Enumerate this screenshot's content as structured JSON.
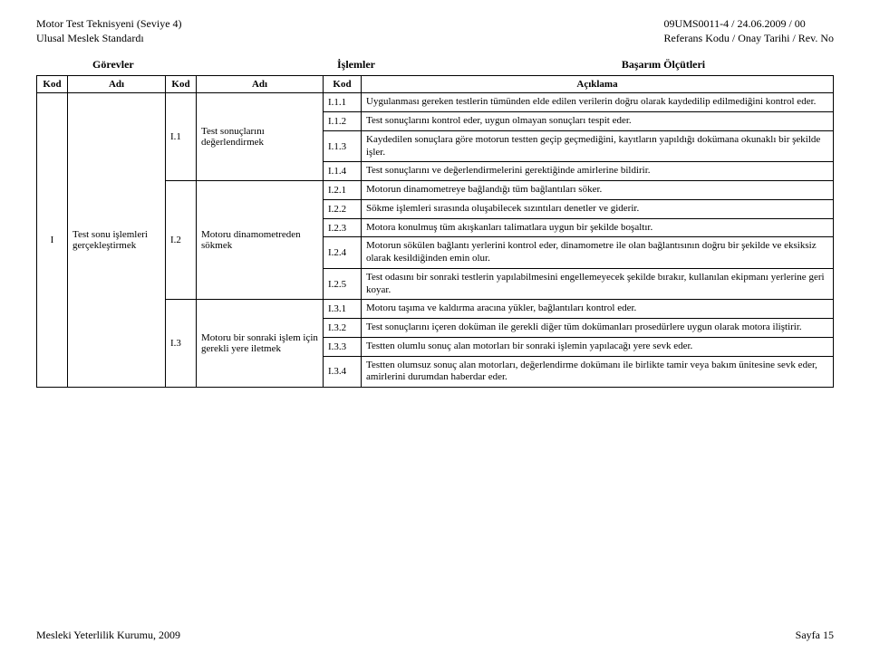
{
  "header": {
    "left_line1": "Motor Test Teknisyeni (Seviye 4)",
    "left_line2": "Ulusal Meslek Standardı",
    "right_line1": "09UMS0011-4 / 24.06.2009  / 00",
    "right_line2": "Referans Kodu / Onay Tarihi / Rev. No"
  },
  "section_titles": {
    "gorevler": "Görevler",
    "islemler": "İşlemler",
    "basarim": "Başarım Ölçütleri"
  },
  "col_headers": {
    "kod": "Kod",
    "adi": "Adı",
    "aciklama": "Açıklama"
  },
  "task": {
    "kod": "I",
    "adi": "Test sonu işlemleri gerçekleştirmek"
  },
  "ops": [
    {
      "kod": "I.1",
      "adi": "Test sonuçlarını değerlendirmek"
    },
    {
      "kod": "I.2",
      "adi": "Motoru dinamometreden sökmek"
    },
    {
      "kod": "I.3",
      "adi": "Motoru bir sonraki işlem için gerekli yere iletmek"
    }
  ],
  "criteria": {
    "i1": [
      {
        "kod": "I.1.1",
        "txt": "Uygulanması gereken testlerin tümünden elde edilen verilerin doğru olarak kaydedilip edilmediğini kontrol eder."
      },
      {
        "kod": "I.1.2",
        "txt": "Test sonuçlarını kontrol eder, uygun olmayan sonuçları tespit eder."
      },
      {
        "kod": "I.1.3",
        "txt": "Kaydedilen sonuçlara göre motorun testten geçip geçmediğini, kayıtların yapıldığı dokümana okunaklı bir şekilde işler."
      },
      {
        "kod": "I.1.4",
        "txt": "Test sonuçlarını ve değerlendirmelerini gerektiğinde amirlerine bildirir."
      }
    ],
    "i2": [
      {
        "kod": "I.2.1",
        "txt": "Motorun dinamometreye bağlandığı tüm bağlantıları söker."
      },
      {
        "kod": "I.2.2",
        "txt": "Sökme işlemleri sırasında oluşabilecek sızıntıları denetler ve giderir."
      },
      {
        "kod": "I.2.3",
        "txt": "Motora konulmuş tüm akışkanları talimatlara uygun bir şekilde boşaltır."
      },
      {
        "kod": "I.2.4",
        "txt": "Motorun sökülen bağlantı yerlerini kontrol eder, dinamometre ile olan bağlantısının doğru bir şekilde ve eksiksiz olarak kesildiğinden emin olur."
      },
      {
        "kod": "I.2.5",
        "txt": "Test odasını bir sonraki testlerin yapılabilmesini engellemeyecek şekilde bırakır, kullanılan ekipmanı yerlerine geri koyar."
      }
    ],
    "i3": [
      {
        "kod": "I.3.1",
        "txt": "Motoru taşıma ve kaldırma aracına yükler, bağlantıları kontrol eder."
      },
      {
        "kod": "I.3.2",
        "txt": "Test sonuçlarını içeren doküman ile gerekli diğer tüm dokümanları prosedürlere uygun olarak motora iliştirir."
      },
      {
        "kod": "I.3.3",
        "txt": "Testten olumlu sonuç alan motorları bir sonraki işlemin yapılacağı yere sevk eder."
      },
      {
        "kod": "I.3.4",
        "txt": "Testten olumsuz sonuç alan motorları, değerlendirme dokümanı ile birlikte tamir veya bakım ünitesine sevk eder, amirlerini durumdan haberdar eder."
      }
    ]
  },
  "footer": {
    "left": "Mesleki Yeterlilik Kurumu, 2009",
    "right": "Sayfa 15"
  }
}
